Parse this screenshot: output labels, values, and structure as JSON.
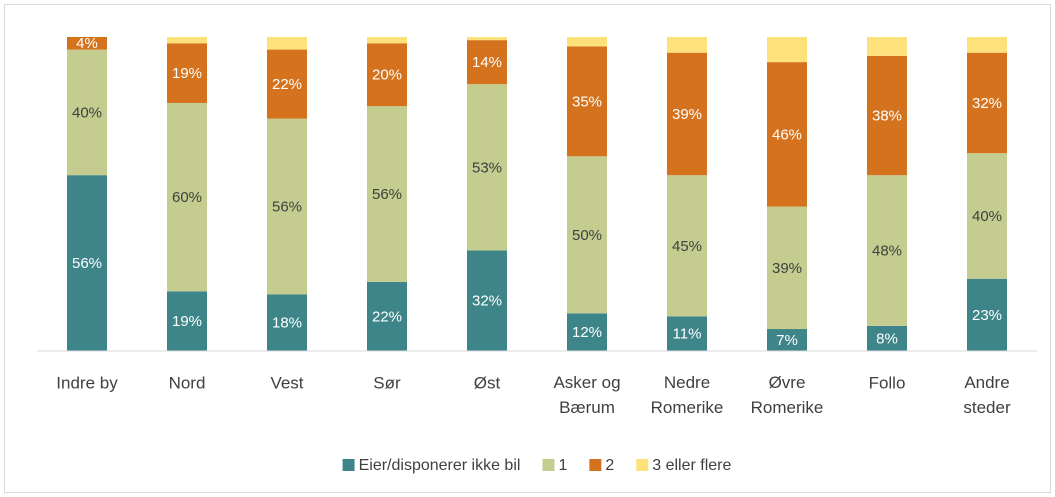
{
  "chart_data": {
    "type": "stacked_bar",
    "categories": [
      "Indre by",
      "Nord",
      "Vest",
      "Sør",
      "Øst",
      "Asker og Bærum",
      "Nedre Romerike",
      "Øvre Romerike",
      "Follo",
      "Andre steder"
    ],
    "ylim": [
      0,
      100
    ],
    "legend": "bottom",
    "series": [
      {
        "name": "Eier/disponerer ikke bil",
        "color": "#3e8589",
        "label_color": "#ffffff",
        "values": [
          56,
          19,
          18,
          22,
          32,
          12,
          11,
          7,
          8,
          23
        ],
        "value_labels": [
          "56%",
          "19%",
          "18%",
          "22%",
          "32%",
          "12%",
          "11%",
          "7%",
          "8%",
          "23%"
        ]
      },
      {
        "name": "1",
        "color": "#c4cc8f",
        "label_color": "#404040",
        "values": [
          40,
          60,
          56,
          56,
          53,
          50,
          45,
          39,
          48,
          40
        ],
        "value_labels": [
          "40%",
          "60%",
          "56%",
          "56%",
          "53%",
          "50%",
          "45%",
          "39%",
          "48%",
          "40%"
        ]
      },
      {
        "name": "2",
        "color": "#d4721d",
        "label_color": "#ffffff",
        "values": [
          4,
          19,
          22,
          20,
          14,
          35,
          39,
          46,
          38,
          32
        ],
        "value_labels": [
          "4%",
          "19%",
          "22%",
          "20%",
          "14%",
          "35%",
          "39%",
          "46%",
          "38%",
          "32%"
        ]
      },
      {
        "name": "3 eller flere",
        "color": "#fde17a",
        "values": [
          0,
          2,
          4,
          2,
          1,
          3,
          5,
          8,
          6,
          5
        ]
      }
    ]
  }
}
